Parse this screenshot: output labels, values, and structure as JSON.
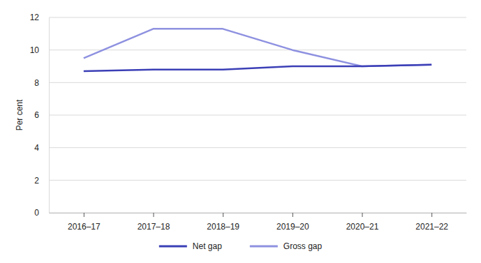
{
  "chart_data": {
    "type": "line",
    "y_label": "Per cent",
    "categories": [
      "2016–17",
      "2017–18",
      "2018–19",
      "2019–20",
      "2020–21",
      "2021–22"
    ],
    "series": [
      {
        "name": "Net gap",
        "color": "#3b3fb6",
        "values": [
          8.7,
          8.8,
          8.8,
          9.0,
          9.0,
          9.1
        ]
      },
      {
        "name": "Gross gap",
        "color": "#8e91e0",
        "values": [
          9.5,
          11.3,
          11.3,
          10.0,
          9.0,
          9.1
        ]
      }
    ],
    "ylim": [
      0,
      12
    ],
    "yticks": [
      0,
      2,
      4,
      6,
      8,
      10,
      12
    ],
    "grid": true,
    "legend": "bottom"
  }
}
